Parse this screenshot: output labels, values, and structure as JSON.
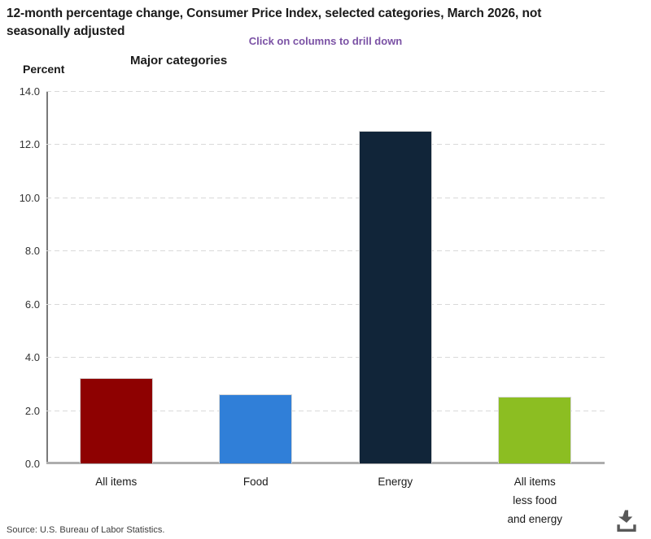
{
  "header": {
    "title": "12-month percentage change, Consumer Price Index, selected categories, March 2026, not\nseasonally adjusted",
    "drill_hint": "Click on columns to drill down",
    "axis_group_label": "Major categories",
    "y_axis_unit_label": "Percent"
  },
  "chart_data": {
    "type": "bar",
    "title": "12-month percentage change, Consumer Price Index, selected categories, March 2026, not seasonally adjusted",
    "subtitle": "Click on columns to drill down",
    "categories": [
      "All items",
      "Food",
      "Energy",
      "All items less food and energy"
    ],
    "category_labels": [
      "All items",
      "Food",
      "Energy",
      "All items\nless food\nand energy"
    ],
    "values": [
      3.2,
      2.6,
      12.5,
      2.5
    ],
    "bar_colors": [
      "#8E0101",
      "#307FD8",
      "#112539",
      "#8CBE22"
    ],
    "xlabel": "Major categories",
    "ylabel": "Percent",
    "ylim": [
      0,
      14
    ],
    "yticks": [
      0,
      2,
      4,
      6,
      8,
      10,
      12,
      14
    ],
    "ytick_decimals": 1,
    "grid": "dashed horizontal gridlines",
    "legend": "none"
  },
  "footer": {
    "source": "Source: U.S. Bureau of Labor Statistics."
  },
  "icons": {
    "download": "download-icon"
  },
  "colors": {
    "hint_purple": "#7B52A5",
    "axis_gray": "#7a7a7a",
    "gridline_gray": "#d9d9d9"
  }
}
